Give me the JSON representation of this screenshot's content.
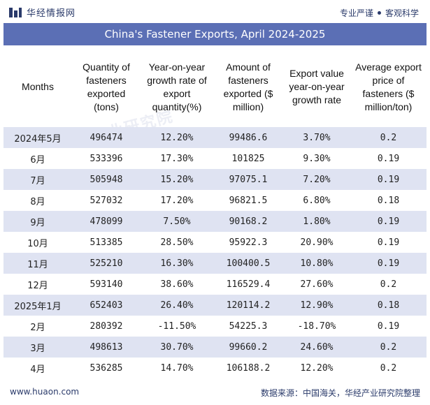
{
  "brand": {
    "name": "华经情报网",
    "tagline_left": "专业严谨",
    "tagline_right": "客观科学",
    "logo_color": "#2a3a6a"
  },
  "title": "China's Fastener Exports, April 2024-2025",
  "columns": [
    "Months",
    "Quantity of fasteners exported (tons)",
    "Year-on-year growth rate of export quantity(%)",
    "Amount of fasteners exported ($ million)",
    "Export value year-on-year growth rate",
    "Average export price of fasteners ($ million/ton)"
  ],
  "rows": [
    {
      "month": "2024年5月",
      "quantity": "496474",
      "qty_growth": "12.20%",
      "amount": "99486.6",
      "value_growth": "3.70%",
      "avg_price": "0.2"
    },
    {
      "month": "6月",
      "quantity": "533396",
      "qty_growth": "17.30%",
      "amount": "101825",
      "value_growth": "9.30%",
      "avg_price": "0.19"
    },
    {
      "month": "7月",
      "quantity": "505948",
      "qty_growth": "15.20%",
      "amount": "97075.1",
      "value_growth": "7.20%",
      "avg_price": "0.19"
    },
    {
      "month": "8月",
      "quantity": "527032",
      "qty_growth": "17.20%",
      "amount": "96821.5",
      "value_growth": "6.80%",
      "avg_price": "0.18"
    },
    {
      "month": "9月",
      "quantity": "478099",
      "qty_growth": "7.50%",
      "amount": "90168.2",
      "value_growth": "1.80%",
      "avg_price": "0.19"
    },
    {
      "month": "10月",
      "quantity": "513385",
      "qty_growth": "28.50%",
      "amount": "95922.3",
      "value_growth": "20.90%",
      "avg_price": "0.19"
    },
    {
      "month": "11月",
      "quantity": "525210",
      "qty_growth": "16.30%",
      "amount": "100400.5",
      "value_growth": "10.80%",
      "avg_price": "0.19"
    },
    {
      "month": "12月",
      "quantity": "593140",
      "qty_growth": "38.60%",
      "amount": "116529.4",
      "value_growth": "27.60%",
      "avg_price": "0.2"
    },
    {
      "month": "2025年1月",
      "quantity": "652403",
      "qty_growth": "26.40%",
      "amount": "120114.2",
      "value_growth": "12.90%",
      "avg_price": "0.18"
    },
    {
      "month": "2月",
      "quantity": "280392",
      "qty_growth": "-11.50%",
      "amount": "54225.3",
      "value_growth": "-18.70%",
      "avg_price": "0.19"
    },
    {
      "month": "3月",
      "quantity": "498613",
      "qty_growth": "30.70%",
      "amount": "99660.2",
      "value_growth": "24.60%",
      "avg_price": "0.2"
    },
    {
      "month": "4月",
      "quantity": "536285",
      "qty_growth": "14.70%",
      "amount": "106188.2",
      "value_growth": "12.20%",
      "avg_price": "0.2"
    }
  ],
  "colors": {
    "title_bar": "#5b6fb5",
    "stripe": "#dfe3f2",
    "negative": "#3a6ac0"
  },
  "footer": {
    "url": "www.huaon.com",
    "source": "数据来源：中国海关，华经产业研究院整理"
  },
  "watermarks": [
    "华经产业研究院",
    "华经产业研究院"
  ]
}
